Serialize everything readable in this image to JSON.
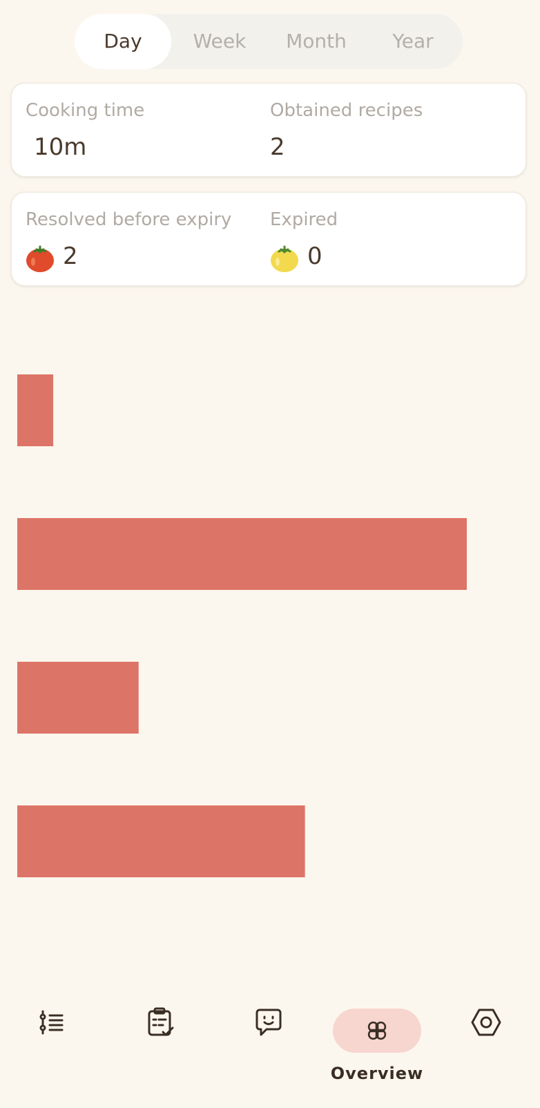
{
  "tabs": {
    "day": "Day",
    "week": "Week",
    "month": "Month",
    "year": "Year",
    "active": "Day"
  },
  "stats": {
    "cooking_time_label": "Cooking time",
    "cooking_time_value": "10m",
    "obtained_recipes_label": "Obtained recipes",
    "obtained_recipes_value": "2",
    "resolved_label": "Resolved before expiry",
    "resolved_value": "2",
    "expired_label": "Expired",
    "expired_value": "0"
  },
  "chart_data": {
    "type": "bar",
    "orientation": "horizontal",
    "values": [
      8,
      100,
      27,
      64
    ],
    "xlim": [
      0,
      100
    ],
    "color": "#dc7567",
    "title": "",
    "xlabel": "",
    "ylabel": ""
  },
  "bottom_nav": {
    "active_label": "Overview",
    "items": [
      "list-icon",
      "checklist-icon",
      "chat-icon",
      "overview-icon",
      "settings-icon"
    ]
  },
  "colors": {
    "background": "#fcf7ee",
    "accent": "#dc7567",
    "active_pill": "#f7d6cf",
    "tomato_red": "#e04b2b",
    "tomato_yellow": "#f2d94e"
  }
}
